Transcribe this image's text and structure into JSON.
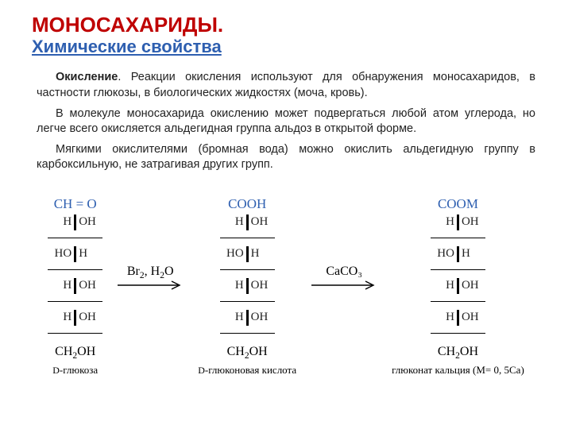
{
  "colors": {
    "title": "#bf0000",
    "subtitle": "#2e5fb0",
    "body": "#222222",
    "topformula": "#2e5fb0",
    "bg": "#ffffff",
    "line": "#000000"
  },
  "fonts": {
    "ui": "Arial",
    "chem": "Times New Roman",
    "title_size_pt": 19,
    "subtitle_size_pt": 16,
    "body_size_pt": 11,
    "chem_size_pt": 12
  },
  "title": "МОНОСАХАРИДЫ.",
  "subtitle": "Химические свойства",
  "para1_lead": "Окисление",
  "para1_rest": ". Реакции окисления используют для обнаружения моносахаридов, в частности глюкозы, в биологических жидкостях (моча, кровь).",
  "para2": "В молекуле моносахарида окислению может подвергаться любой атом углерода, но легче всего окисляется альдегидная группа альдоз в открытой форме.",
  "para3": "Мягкими окислителями (бромная вода) можно окислить альдегидную группу в карбоксильную, не затрагивая других групп.",
  "mol1": {
    "top": "CH = O",
    "rows": [
      [
        "H",
        "OH"
      ],
      [
        "HO",
        "H"
      ],
      [
        "H",
        "OH"
      ],
      [
        "H",
        "OH"
      ]
    ],
    "bottom": "CH₂OH",
    "caption_prefix": "D",
    "caption": "-глюкоза"
  },
  "arrow1": "Br₂, H₂O",
  "mol2": {
    "top": "COOH",
    "rows": [
      [
        "H",
        "OH"
      ],
      [
        "HO",
        "H"
      ],
      [
        "H",
        "OH"
      ],
      [
        "H",
        "OH"
      ]
    ],
    "bottom": "CH₂OH",
    "caption_prefix": "D",
    "caption": "-глюконовая кислота"
  },
  "arrow2": "CaCO₃",
  "mol3": {
    "top": "COOM",
    "rows": [
      [
        "H",
        "OH"
      ],
      [
        "HO",
        "H"
      ],
      [
        "H",
        "OH"
      ],
      [
        "H",
        "OH"
      ]
    ],
    "bottom": "CH₂OH",
    "caption": "глюконат кальция (M= 0, 5Ca)"
  }
}
